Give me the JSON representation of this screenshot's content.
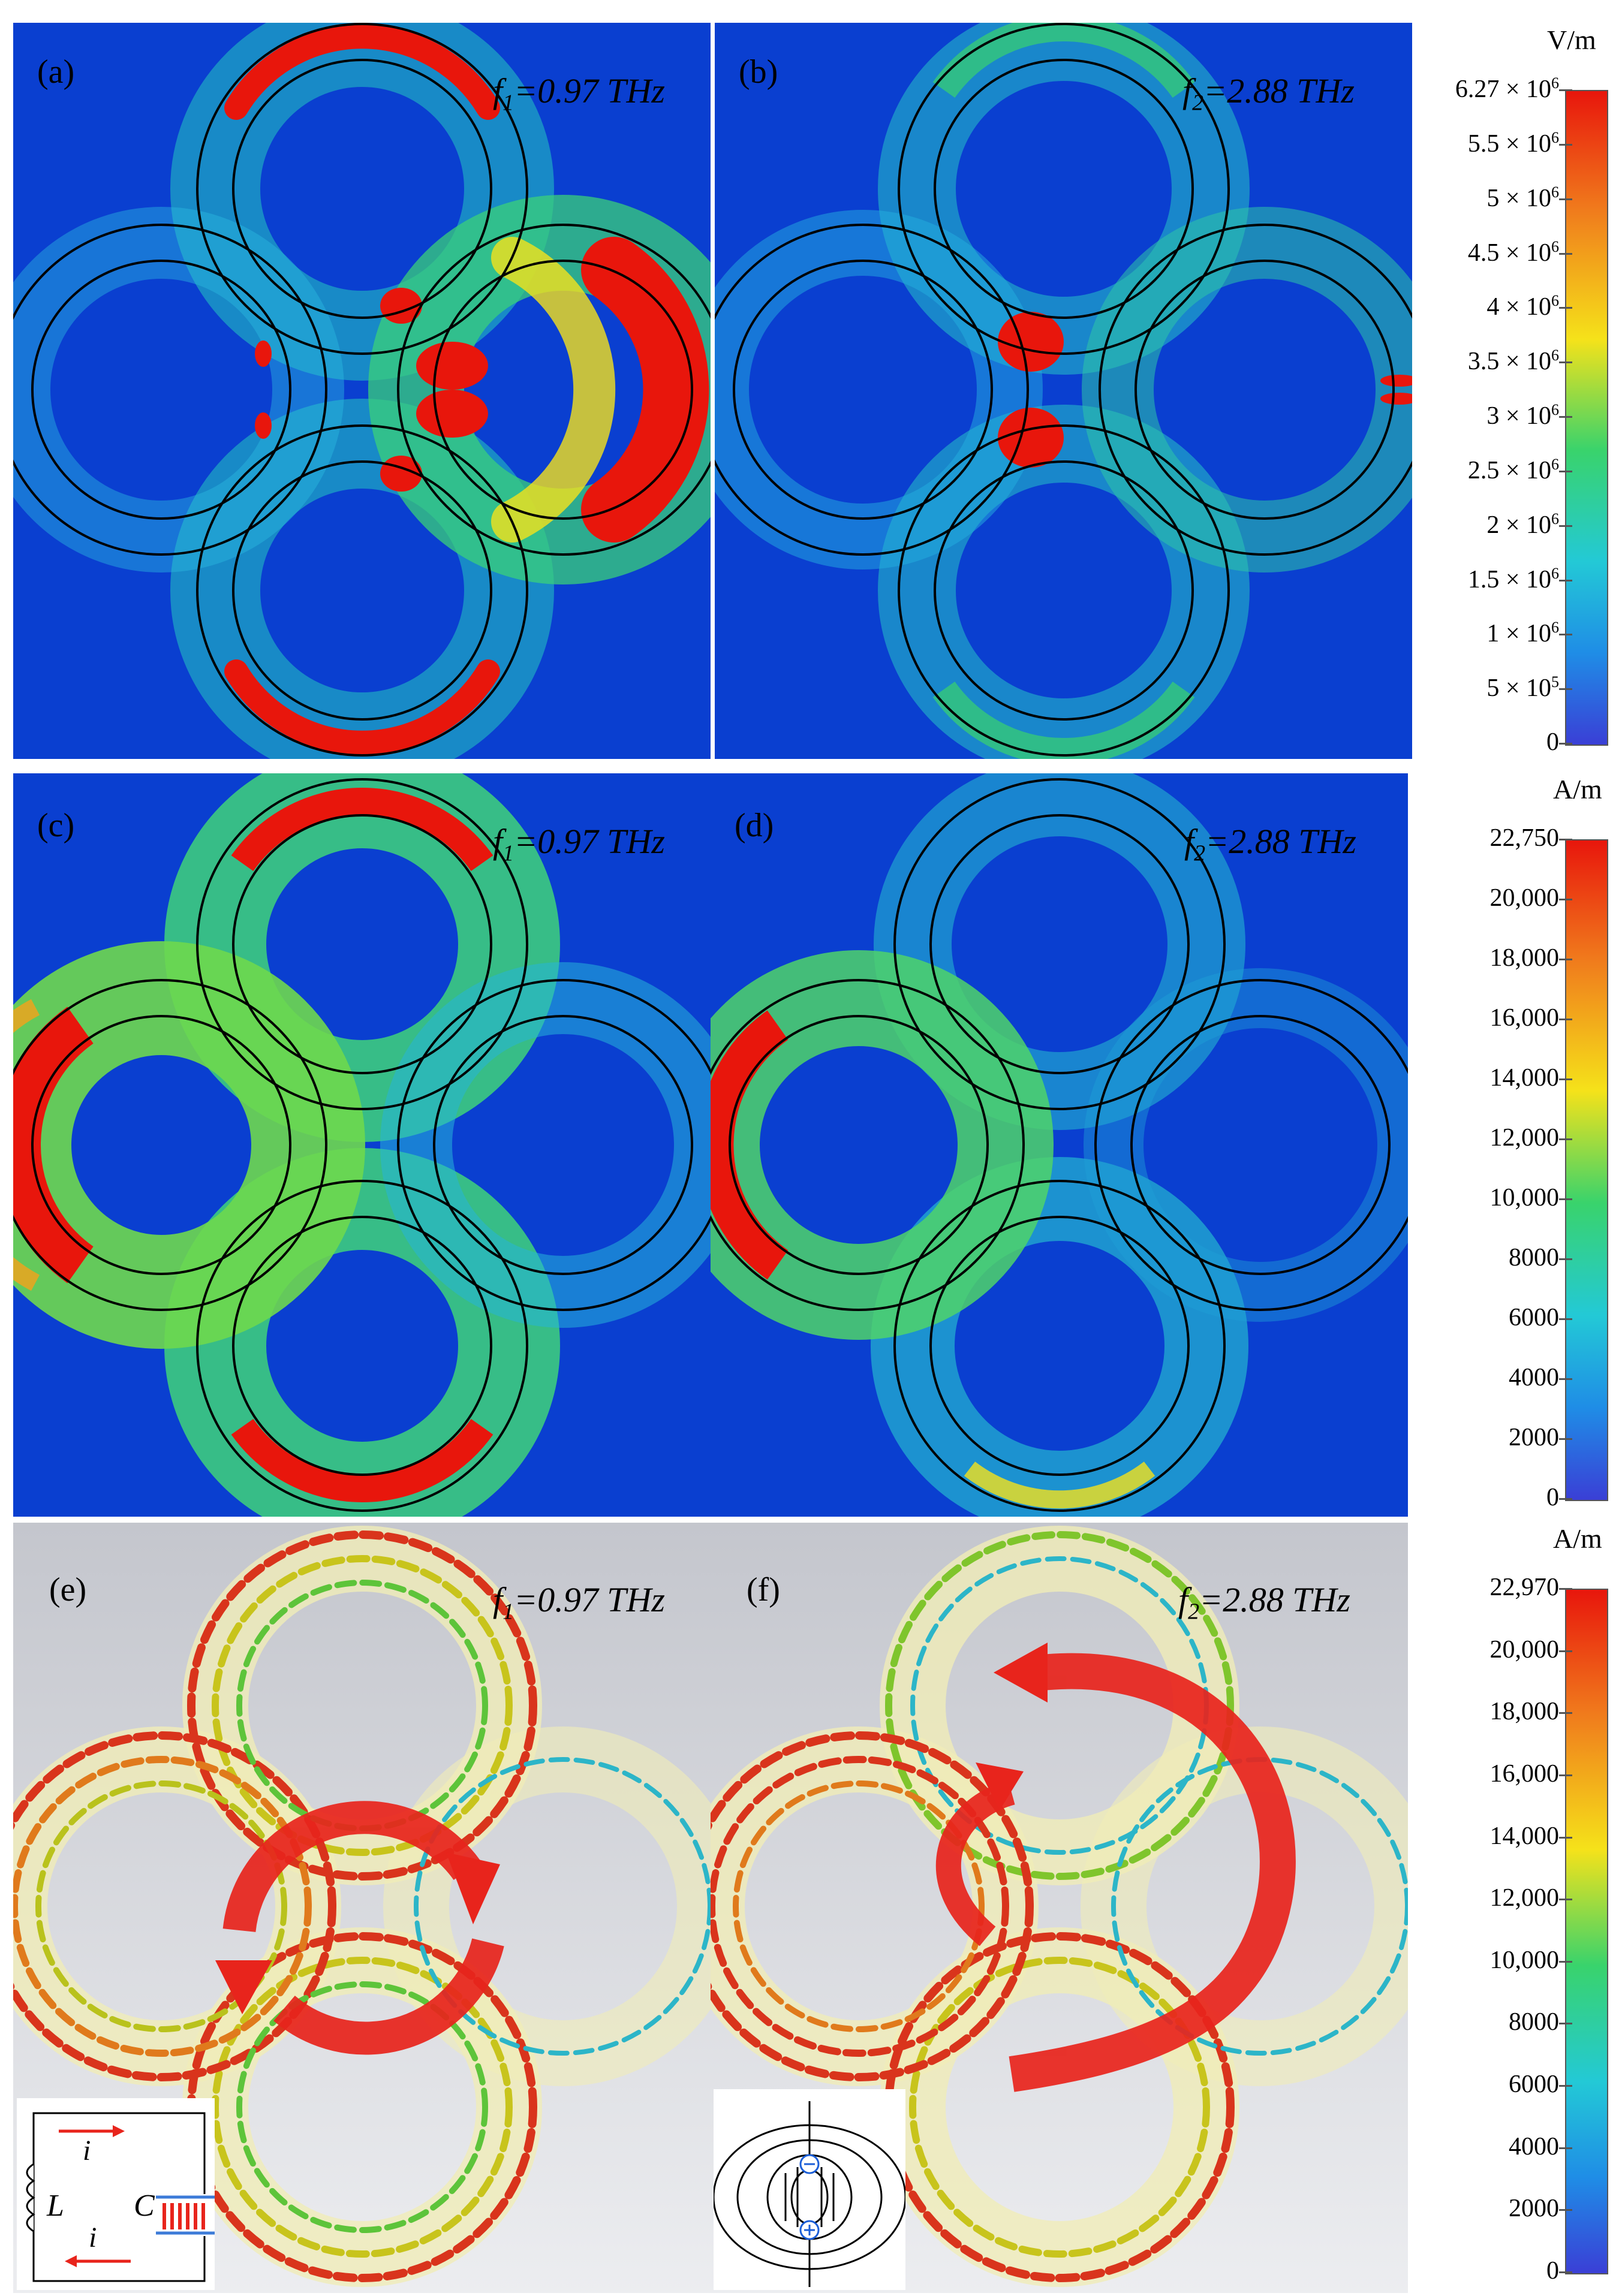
{
  "panels": [
    {
      "id": "a",
      "label": "(a)",
      "freq_sym": "f",
      "freq_sub": "1",
      "freq_val": "=0.97 THz"
    },
    {
      "id": "b",
      "label": "(b)",
      "freq_sym": "f",
      "freq_sub": "2",
      "freq_val": "=2.88 THz"
    },
    {
      "id": "c",
      "label": "(c)",
      "freq_sym": "f",
      "freq_sub": "1",
      "freq_val": "=0.97 THz"
    },
    {
      "id": "d",
      "label": "(d)",
      "freq_sym": "f",
      "freq_sub": "2",
      "freq_val": "=2.88 THz"
    },
    {
      "id": "e",
      "label": "(e)",
      "freq_sym": "f",
      "freq_sub": "1",
      "freq_val": "=0.97 THz"
    },
    {
      "id": "f",
      "label": "(f)",
      "freq_sym": "f",
      "freq_sub": "2",
      "freq_val": "=2.88 THz"
    }
  ],
  "colorbars": [
    {
      "unit": "V/m",
      "ticks": [
        {
          "m": "6.27 × 10",
          "e": "6"
        },
        {
          "m": "5.5 × 10",
          "e": "6"
        },
        {
          "m": "5 × 10",
          "e": "6"
        },
        {
          "m": "4.5 × 10",
          "e": "6"
        },
        {
          "m": "4 × 10",
          "e": "6"
        },
        {
          "m": "3.5 × 10",
          "e": "6"
        },
        {
          "m": "3 × 10",
          "e": "6"
        },
        {
          "m": "2.5 × 10",
          "e": "6"
        },
        {
          "m": "2 × 10",
          "e": "6"
        },
        {
          "m": "1.5 × 10",
          "e": "6"
        },
        {
          "m": "1 × 10",
          "e": "6"
        },
        {
          "m": "5 × 10",
          "e": "5"
        },
        {
          "m": "0",
          "e": ""
        }
      ]
    },
    {
      "unit": "A/m",
      "ticks": [
        {
          "m": "22,750",
          "e": ""
        },
        {
          "m": "20,000",
          "e": ""
        },
        {
          "m": "18,000",
          "e": ""
        },
        {
          "m": "16,000",
          "e": ""
        },
        {
          "m": "14,000",
          "e": ""
        },
        {
          "m": "12,000",
          "e": ""
        },
        {
          "m": "10,000",
          "e": ""
        },
        {
          "m": "8000",
          "e": ""
        },
        {
          "m": "6000",
          "e": ""
        },
        {
          "m": "4000",
          "e": ""
        },
        {
          "m": "2000",
          "e": ""
        },
        {
          "m": "0",
          "e": ""
        }
      ]
    },
    {
      "unit": "A/m",
      "ticks": [
        {
          "m": "22,970",
          "e": ""
        },
        {
          "m": "20,000",
          "e": ""
        },
        {
          "m": "18,000",
          "e": ""
        },
        {
          "m": "16,000",
          "e": ""
        },
        {
          "m": "14,000",
          "e": ""
        },
        {
          "m": "12,000",
          "e": ""
        },
        {
          "m": "10,000",
          "e": ""
        },
        {
          "m": "8000",
          "e": ""
        },
        {
          "m": "6000",
          "e": ""
        },
        {
          "m": "4000",
          "e": ""
        },
        {
          "m": "2000",
          "e": ""
        },
        {
          "m": "0",
          "e": ""
        }
      ]
    }
  ],
  "circuit_inset": {
    "current_top": "i",
    "current_bottom": "i",
    "inductor": "L",
    "capacitor": "C"
  },
  "colors": {
    "field_bg": "#0a3fd0",
    "hot": "#e8160c",
    "warm": "#f5e21a",
    "mid": "#35d07a",
    "cool": "#1fa8e8",
    "arrow": "#e8241c",
    "gray_bg": "#c9cbd2"
  }
}
